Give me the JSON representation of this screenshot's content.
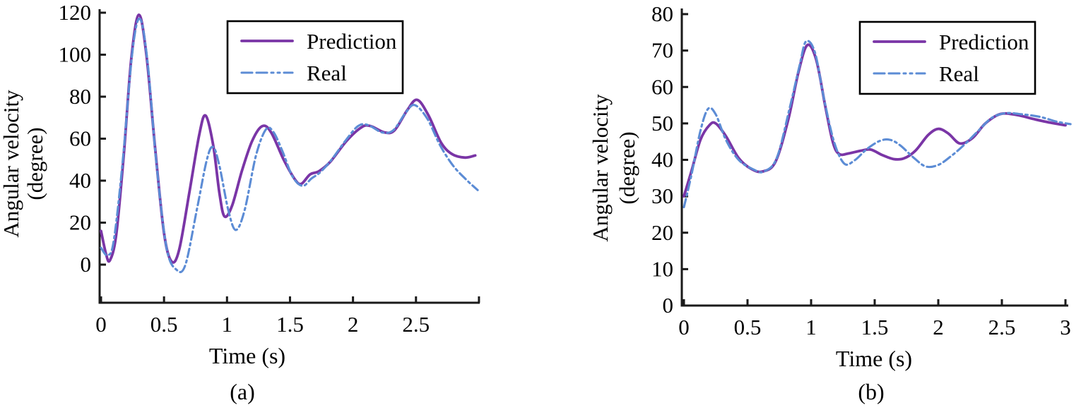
{
  "figure": {
    "background": "#ffffff",
    "axis_color": "#1a1a1a",
    "text_color": "#000000",
    "legend_border_color": "#000000"
  },
  "chart_data": [
    {
      "type": "line",
      "panel": "a",
      "caption": "(a)",
      "xlabel": "Time (s)",
      "ylabel_lines": [
        "Angular velocity",
        "(degree)"
      ],
      "xlim": [
        0,
        3.0
      ],
      "ylim": [
        0,
        120
      ],
      "grid": false,
      "legend_position": "upper-right-inside",
      "legend_items": [
        "Prediction",
        "Real"
      ],
      "xticks": [
        {
          "v": 0,
          "label": "0"
        },
        {
          "v": 0.5,
          "label": "0.5"
        },
        {
          "v": 1,
          "label": "1"
        },
        {
          "v": 1.5,
          "label": "1.5"
        },
        {
          "v": 2,
          "label": "2"
        },
        {
          "v": 2.5,
          "label": "2.5"
        },
        {
          "v": 3.0,
          "label": ""
        }
      ],
      "yticks": [
        {
          "v": 0,
          "label": "0"
        },
        {
          "v": 20,
          "label": "20"
        },
        {
          "v": 40,
          "label": "40"
        },
        {
          "v": 60,
          "label": "60"
        },
        {
          "v": 80,
          "label": "80"
        },
        {
          "v": 100,
          "label": "100"
        },
        {
          "v": 120,
          "label": "120"
        }
      ],
      "series": [
        {
          "name": "Prediction",
          "color": "#7A35A6",
          "line_style": "solid",
          "points": [
            [
              0,
              16
            ],
            [
              0.04,
              5
            ],
            [
              0.07,
              2
            ],
            [
              0.12,
              14
            ],
            [
              0.18,
              52
            ],
            [
              0.24,
              98
            ],
            [
              0.3,
              119
            ],
            [
              0.36,
              100
            ],
            [
              0.43,
              55
            ],
            [
              0.5,
              15
            ],
            [
              0.56,
              1.5
            ],
            [
              0.62,
              7
            ],
            [
              0.7,
              34
            ],
            [
              0.78,
              62
            ],
            [
              0.83,
              71
            ],
            [
              0.89,
              57
            ],
            [
              0.94,
              34
            ],
            [
              0.98,
              23
            ],
            [
              1.04,
              28
            ],
            [
              1.12,
              45
            ],
            [
              1.2,
              59
            ],
            [
              1.28,
              66
            ],
            [
              1.35,
              63
            ],
            [
              1.45,
              50
            ],
            [
              1.54,
              40.5
            ],
            [
              1.59,
              38.5
            ],
            [
              1.66,
              43
            ],
            [
              1.73,
              44.5
            ],
            [
              1.82,
              49
            ],
            [
              1.95,
              59
            ],
            [
              2.07,
              65.5
            ],
            [
              2.14,
              66
            ],
            [
              2.25,
              63
            ],
            [
              2.33,
              64
            ],
            [
              2.43,
              73.5
            ],
            [
              2.51,
              78.5
            ],
            [
              2.6,
              71
            ],
            [
              2.7,
              58
            ],
            [
              2.79,
              52.5
            ],
            [
              2.89,
              51
            ],
            [
              2.97,
              52
            ]
          ]
        },
        {
          "name": "Real",
          "color": "#5C8CD5",
          "line_style": "dash-dot",
          "points": [
            [
              0,
              8
            ],
            [
              0.05,
              4.5
            ],
            [
              0.1,
              11
            ],
            [
              0.17,
              48
            ],
            [
              0.25,
              102
            ],
            [
              0.31,
              117
            ],
            [
              0.37,
              96
            ],
            [
              0.44,
              48
            ],
            [
              0.52,
              8
            ],
            [
              0.6,
              -2.5
            ],
            [
              0.67,
              0
            ],
            [
              0.76,
              26
            ],
            [
              0.84,
              50
            ],
            [
              0.89,
              56
            ],
            [
              0.94,
              47
            ],
            [
              1.01,
              26
            ],
            [
              1.07,
              16.5
            ],
            [
              1.14,
              26
            ],
            [
              1.23,
              52
            ],
            [
              1.31,
              64.5
            ],
            [
              1.37,
              63
            ],
            [
              1.44,
              54
            ],
            [
              1.52,
              42
            ],
            [
              1.6,
              37.5
            ],
            [
              1.67,
              41
            ],
            [
              1.74,
              44
            ],
            [
              1.83,
              50
            ],
            [
              1.94,
              59
            ],
            [
              2.04,
              66
            ],
            [
              2.12,
              66.5
            ],
            [
              2.23,
              63
            ],
            [
              2.32,
              64
            ],
            [
              2.42,
              72.5
            ],
            [
              2.49,
              76
            ],
            [
              2.59,
              69.5
            ],
            [
              2.69,
              57
            ],
            [
              2.79,
              47.5
            ],
            [
              2.89,
              41
            ],
            [
              2.99,
              35.5
            ]
          ]
        }
      ]
    },
    {
      "type": "line",
      "panel": "b",
      "caption": "(b)",
      "xlabel": "Time (s)",
      "ylabel_lines": [
        "Angular velocity",
        "(degree)"
      ],
      "xlim": [
        0,
        3.0
      ],
      "ylim": [
        0,
        80
      ],
      "grid": false,
      "legend_position": "upper-right-inside",
      "legend_items": [
        "Prediction",
        "Real"
      ],
      "xticks": [
        {
          "v": 0,
          "label": "0"
        },
        {
          "v": 0.5,
          "label": "0.5"
        },
        {
          "v": 1,
          "label": "1"
        },
        {
          "v": 1.5,
          "label": "1.5"
        },
        {
          "v": 2,
          "label": "2"
        },
        {
          "v": 2.5,
          "label": "2.5"
        },
        {
          "v": 3,
          "label": "3"
        }
      ],
      "yticks": [
        {
          "v": 0,
          "label": "0"
        },
        {
          "v": 10,
          "label": "10"
        },
        {
          "v": 20,
          "label": "20"
        },
        {
          "v": 30,
          "label": "30"
        },
        {
          "v": 40,
          "label": "40"
        },
        {
          "v": 50,
          "label": "50"
        },
        {
          "v": 60,
          "label": "60"
        },
        {
          "v": 70,
          "label": "70"
        },
        {
          "v": 80,
          "label": "80"
        }
      ],
      "series": [
        {
          "name": "Prediction",
          "color": "#7A35A6",
          "line_style": "solid",
          "points": [
            [
              0,
              30
            ],
            [
              0.06,
              37
            ],
            [
              0.13,
              45.5
            ],
            [
              0.2,
              49.5
            ],
            [
              0.25,
              50
            ],
            [
              0.33,
              46.5
            ],
            [
              0.43,
              40.5
            ],
            [
              0.53,
              37.5
            ],
            [
              0.62,
              36.8
            ],
            [
              0.72,
              39.5
            ],
            [
              0.82,
              51
            ],
            [
              0.9,
              64
            ],
            [
              0.97,
              71.5
            ],
            [
              1.04,
              67.5
            ],
            [
              1.11,
              55
            ],
            [
              1.17,
              45
            ],
            [
              1.22,
              41.6
            ],
            [
              1.3,
              41.8
            ],
            [
              1.39,
              42.5
            ],
            [
              1.47,
              42.8
            ],
            [
              1.56,
              41.3
            ],
            [
              1.65,
              40.2
            ],
            [
              1.73,
              40.4
            ],
            [
              1.82,
              42.5
            ],
            [
              1.92,
              46.8
            ],
            [
              2.0,
              48.5
            ],
            [
              2.08,
              47.2
            ],
            [
              2.17,
              44.5
            ],
            [
              2.27,
              46
            ],
            [
              2.37,
              50
            ],
            [
              2.49,
              52.6
            ],
            [
              2.62,
              52.3
            ],
            [
              2.75,
              51.2
            ],
            [
              2.88,
              50.2
            ],
            [
              3.0,
              49.5
            ]
          ]
        },
        {
          "name": "Real",
          "color": "#5C8CD5",
          "line_style": "dash-dot",
          "points": [
            [
              0,
              27
            ],
            [
              0.06,
              36
            ],
            [
              0.13,
              48
            ],
            [
              0.19,
              54
            ],
            [
              0.25,
              52.5
            ],
            [
              0.33,
              45.5
            ],
            [
              0.43,
              40
            ],
            [
              0.55,
              37.3
            ],
            [
              0.63,
              36.8
            ],
            [
              0.73,
              40.5
            ],
            [
              0.83,
              54
            ],
            [
              0.91,
              66
            ],
            [
              0.96,
              72.5
            ],
            [
              1.03,
              69.5
            ],
            [
              1.1,
              57
            ],
            [
              1.18,
              45
            ],
            [
              1.26,
              39
            ],
            [
              1.34,
              39.8
            ],
            [
              1.44,
              43
            ],
            [
              1.54,
              45.2
            ],
            [
              1.62,
              45.5
            ],
            [
              1.7,
              44
            ],
            [
              1.8,
              40.8
            ],
            [
              1.9,
              38.2
            ],
            [
              2.0,
              38.6
            ],
            [
              2.1,
              41
            ],
            [
              2.2,
              44
            ],
            [
              2.31,
              47.8
            ],
            [
              2.42,
              51.5
            ],
            [
              2.53,
              52.8
            ],
            [
              2.66,
              52.5
            ],
            [
              2.8,
              51.8
            ],
            [
              2.93,
              50.5
            ],
            [
              3.04,
              49.8
            ]
          ]
        }
      ]
    }
  ]
}
